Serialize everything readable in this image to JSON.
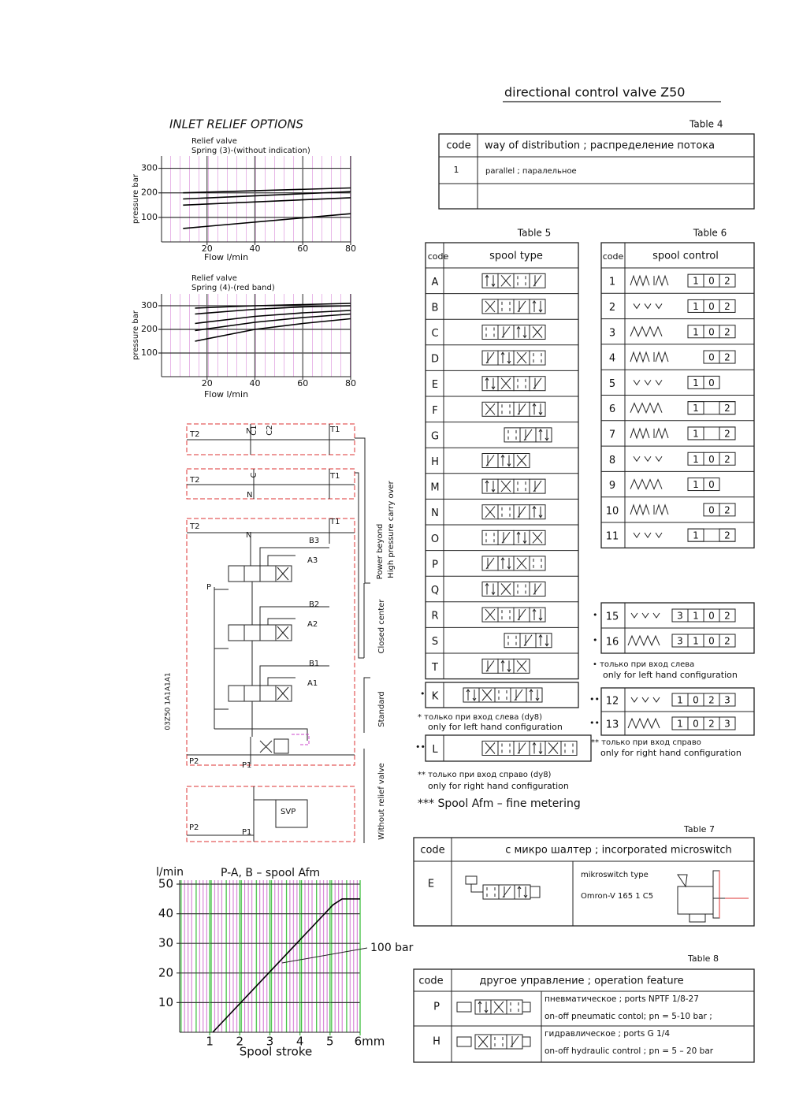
{
  "header": {
    "title": "directional control valve Z50"
  },
  "section_title": "INLET RELIEF OPTIONS",
  "chart_data": [
    {
      "type": "line",
      "title": "Relief valve",
      "subtitle": "Spring (3)-(without indication)",
      "x_label": "Flow l/min",
      "y_label": "pressure bar",
      "xlim": [
        1,
        80
      ],
      "ylim": [
        0,
        350
      ],
      "xticks": [
        20,
        40,
        60,
        80
      ],
      "yticks": [
        100,
        200,
        300
      ],
      "grid": true,
      "color": "#000000",
      "x": [
        10,
        80
      ],
      "series": [
        {
          "values": [
            200,
            220
          ]
        },
        {
          "values": [
            175,
            205
          ]
        },
        {
          "values": [
            150,
            180
          ]
        },
        {
          "values": [
            55,
            115
          ]
        }
      ]
    },
    {
      "type": "line",
      "title": "Relief valve",
      "subtitle": "Spring (4)-(red band)",
      "x_label": "Flow l/min",
      "y_label": "pressure bar",
      "xlim": [
        1,
        80
      ],
      "ylim": [
        0,
        350
      ],
      "xticks": [
        20,
        40,
        60,
        80
      ],
      "yticks": [
        100,
        200,
        300
      ],
      "grid": true,
      "color": "#000000",
      "x": [
        15,
        40,
        60,
        80
      ],
      "series": [
        {
          "values": [
            290,
            300,
            305,
            310
          ]
        },
        {
          "values": [
            265,
            285,
            295,
            300
          ]
        },
        {
          "values": [
            225,
            255,
            270,
            280
          ]
        },
        {
          "values": [
            195,
            230,
            250,
            265
          ]
        },
        {
          "values": [
            150,
            200,
            225,
            245
          ]
        }
      ]
    },
    {
      "type": "line",
      "title": "P-A, B – spool Afm",
      "x_label": "Spool stroke",
      "y_label": "l/min",
      "annotation": "100 bar",
      "xlim": [
        0,
        6
      ],
      "ylim": [
        0,
        50
      ],
      "xticks": [
        1,
        2,
        3,
        4,
        5,
        {
          "value": 6,
          "label": "6mm"
        }
      ],
      "yticks": [
        10,
        20,
        30,
        40,
        50
      ],
      "grid": true,
      "color": "#000000",
      "x": [
        1.1,
        5.1,
        5.4,
        6
      ],
      "series": [
        {
          "values": [
            0,
            43,
            45,
            45
          ]
        }
      ]
    }
  ],
  "schematic": {
    "labels": [
      "T2",
      "N",
      "C1",
      "C2",
      "T1",
      "T2",
      "C",
      "N",
      "T1",
      "T2",
      "T1",
      "N",
      "B3",
      "A3",
      "P",
      "B2",
      "A2",
      "B1",
      "A1",
      "P2",
      "P1",
      "P2",
      "P1",
      "SVP"
    ],
    "model": "03Z50 1A1A1A1",
    "side_labels": [
      "Power beyond",
      "High pressure carry over",
      "Closed center",
      "Standard",
      "Without relief valve"
    ]
  },
  "table4": {
    "caption": "Table 4",
    "headers": [
      "code",
      "way of distribution ; распределение потока"
    ],
    "rows": [
      [
        "1",
        "parallel ; паралельное"
      ]
    ]
  },
  "table5": {
    "caption": "Table 5",
    "headers": [
      "code",
      "spool type"
    ],
    "rows": [
      {
        "code": "A"
      },
      {
        "code": "B"
      },
      {
        "code": "C"
      },
      {
        "code": "D"
      },
      {
        "code": "E"
      },
      {
        "code": "F"
      },
      {
        "code": "G"
      },
      {
        "code": "H"
      },
      {
        "code": "M"
      },
      {
        "code": "N"
      },
      {
        "code": "O"
      },
      {
        "code": "P"
      },
      {
        "code": "Q"
      },
      {
        "code": "R"
      },
      {
        "code": "S"
      },
      {
        "code": "T"
      },
      {
        "code": "K",
        "mark": "•"
      },
      {
        "code": "L",
        "mark": "••"
      }
    ],
    "notes": [
      "* только при вход слева (dy8)",
      "only for left hand configuration",
      "** только при вход справо (dy8)",
      "only for right hand configuration",
      "*** Spool Afm – fine metering"
    ]
  },
  "table6": {
    "caption": "Table 6",
    "headers": [
      "code",
      "spool control"
    ],
    "rows": [
      {
        "code": "1",
        "boxes": [
          "1",
          "0",
          "2"
        ]
      },
      {
        "code": "2",
        "boxes": [
          "1",
          "0",
          "2"
        ]
      },
      {
        "code": "3",
        "boxes": [
          "1",
          "0",
          "2"
        ]
      },
      {
        "code": "4",
        "boxes": [
          "0",
          "2"
        ]
      },
      {
        "code": "5",
        "boxes": [
          "1",
          "0"
        ]
      },
      {
        "code": "6",
        "boxes": [
          "1",
          "2"
        ]
      },
      {
        "code": "7",
        "boxes": [
          "1",
          "2"
        ]
      },
      {
        "code": "8",
        "boxes": [
          "1",
          "0",
          "2"
        ]
      },
      {
        "code": "9",
        "boxes": [
          "1",
          "0"
        ]
      },
      {
        "code": "10",
        "boxes": [
          "0",
          "2"
        ]
      },
      {
        "code": "11",
        "boxes": [
          "1",
          "2"
        ]
      }
    ],
    "left_rows": [
      {
        "code": "15",
        "mark": "•",
        "boxes": [
          "3",
          "1",
          "0",
          "2"
        ]
      },
      {
        "code": "16",
        "mark": "•",
        "boxes": [
          "3",
          "1",
          "0",
          "2"
        ]
      }
    ],
    "left_notes": [
      "• только при вход слева",
      "only for left hand configuration"
    ],
    "right_rows": [
      {
        "code": "12",
        "mark": "••",
        "boxes": [
          "1",
          "0",
          "2",
          "3"
        ]
      },
      {
        "code": "13",
        "mark": "••",
        "boxes": [
          "1",
          "0",
          "2",
          "3"
        ]
      }
    ],
    "right_notes": [
      "** только при вход справо",
      "only for right hand configuration"
    ]
  },
  "table7": {
    "caption": "Table 7",
    "headers": [
      "code",
      "с микро шалтер ; incorporated microswitch"
    ],
    "row": {
      "code": "E",
      "type_label": "mikroswitch type",
      "type_value": "Omron-V 165 1 C5"
    }
  },
  "table8": {
    "caption": "Table 8",
    "headers": [
      "code",
      "другое управление ; operation feature"
    ],
    "rows": [
      {
        "code": "P",
        "lines": [
          "пневматическое ; ports NPTF 1/8-27",
          "on-off pneumatic contol; pn = 5-10 bar ;"
        ]
      },
      {
        "code": "H",
        "lines": [
          "гидравлическое ;  ports G 1/4",
          "on-off hydraulic control ; pn = 5 – 20 bar"
        ]
      }
    ]
  }
}
